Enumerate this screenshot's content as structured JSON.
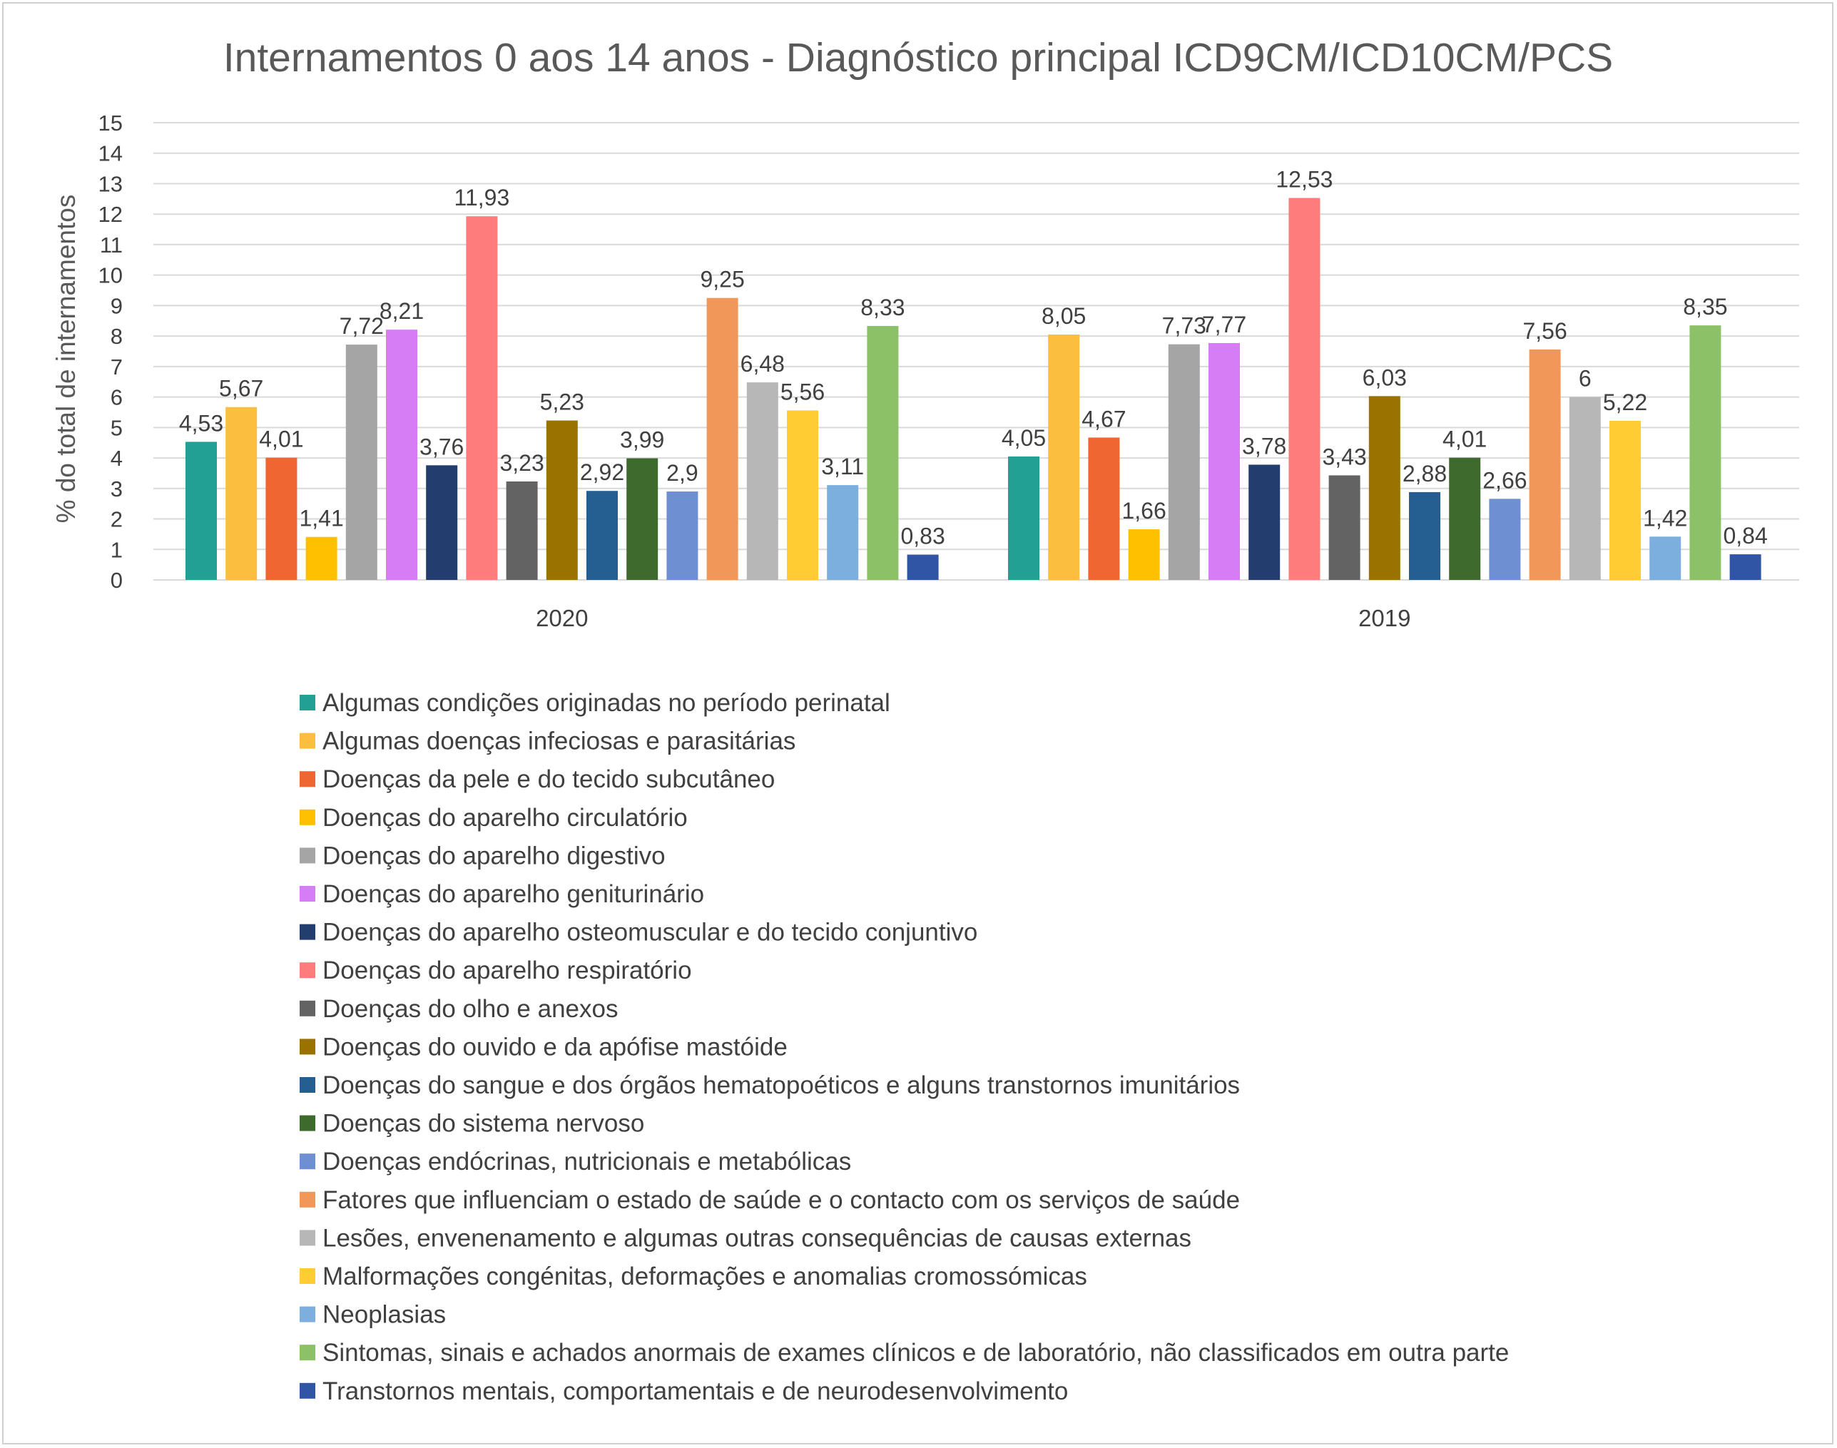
{
  "chart_data": {
    "type": "bar",
    "title": "Internamentos 0 aos 14 anos - Diagnóstico principal ICD9CM/ICD10CM/PCS",
    "xlabel": "",
    "ylabel": "% do total de internamentos",
    "ylim": [
      0,
      15
    ],
    "yticks": [
      "0",
      "1",
      "2",
      "3",
      "4",
      "5",
      "6",
      "7",
      "8",
      "9",
      "10",
      "11",
      "12",
      "13",
      "14",
      "15"
    ],
    "grid": true,
    "legend_position": "bottom",
    "categories": [
      "2020",
      "2019"
    ],
    "series": [
      {
        "name": "Algumas condições originadas no período perinatal",
        "color": "#21A093",
        "values": [
          4.53,
          4.05
        ],
        "labels": [
          "4,53",
          "4,05"
        ]
      },
      {
        "name": "Algumas doenças infeciosas e parasitárias",
        "color": "#FBBE3F",
        "values": [
          5.67,
          8.05
        ],
        "labels": [
          "5,67",
          "8,05"
        ]
      },
      {
        "name": "Doenças da pele e do tecido subcutâneo",
        "color": "#EF6632",
        "values": [
          4.01,
          4.67
        ],
        "labels": [
          "4,01",
          "4,67"
        ]
      },
      {
        "name": "Doenças do aparelho circulatório",
        "color": "#FFC000",
        "values": [
          1.41,
          1.66
        ],
        "labels": [
          "1,41",
          "1,66"
        ]
      },
      {
        "name": "Doenças do aparelho digestivo",
        "color": "#A5A5A5",
        "values": [
          7.72,
          7.73
        ],
        "labels": [
          "7,72",
          "7,73"
        ]
      },
      {
        "name": "Doenças do aparelho geniturinário",
        "color": "#D67CF5",
        "values": [
          8.21,
          7.77
        ],
        "labels": [
          "8,21",
          "7,77"
        ]
      },
      {
        "name": "Doenças do aparelho osteomuscular e do tecido conjuntivo",
        "color": "#233D6E",
        "values": [
          3.76,
          3.78
        ],
        "labels": [
          "3,76",
          "3,78"
        ]
      },
      {
        "name": "Doenças do aparelho respiratório",
        "color": "#FF7C7C",
        "values": [
          11.93,
          12.53
        ],
        "labels": [
          "11,93",
          "12,53"
        ]
      },
      {
        "name": "Doenças do olho e anexos",
        "color": "#636363",
        "values": [
          3.23,
          3.43
        ],
        "labels": [
          "3,23",
          "3,43"
        ]
      },
      {
        "name": "Doenças do ouvido e da apófise mastóide",
        "color": "#9A7200",
        "values": [
          5.23,
          6.03
        ],
        "labels": [
          "5,23",
          "6,03"
        ]
      },
      {
        "name": "Doenças do sangue e dos órgãos hematopoéticos e alguns transtornos imunitários",
        "color": "#255E91",
        "values": [
          2.92,
          2.88
        ],
        "labels": [
          "2,92",
          "2,88"
        ]
      },
      {
        "name": "Doenças do sistema nervoso",
        "color": "#3E6A2E",
        "values": [
          3.99,
          4.01
        ],
        "labels": [
          "3,99",
          "4,01"
        ]
      },
      {
        "name": "Doenças endócrinas, nutricionais e metabólicas",
        "color": "#6F8FD3",
        "values": [
          2.9,
          2.66
        ],
        "labels": [
          "2,9",
          "2,66"
        ]
      },
      {
        "name": "Fatores que influenciam o estado de saúde e o contacto com os serviços de saúde",
        "color": "#F1975A",
        "values": [
          9.25,
          7.56
        ],
        "labels": [
          "9,25",
          "7,56"
        ]
      },
      {
        "name": "Lesões, envenenamento e algumas outras consequências de causas externas",
        "color": "#B7B7B7",
        "values": [
          6.48,
          6
        ],
        "labels": [
          "6,48",
          "6"
        ]
      },
      {
        "name": "Malformações congénitas, deformações e anomalias cromossómicas",
        "color": "#FFCD33",
        "values": [
          5.56,
          5.22
        ],
        "labels": [
          "5,56",
          "5,22"
        ]
      },
      {
        "name": "Neoplasias",
        "color": "#7CAFDD",
        "values": [
          3.11,
          1.42
        ],
        "labels": [
          "3,11",
          "1,42"
        ]
      },
      {
        "name": "Sintomas, sinais e achados anormais de exames clínicos e de laboratório, não classificados em outra parte",
        "color": "#8CC168",
        "values": [
          8.33,
          8.35
        ],
        "labels": [
          "8,33",
          "8,35"
        ]
      },
      {
        "name": "Transtornos mentais, comportamentais e de neurodesenvolvimento",
        "color": "#2F55A4",
        "values": [
          0.83,
          0.84
        ],
        "labels": [
          "0,83",
          "0,84"
        ]
      }
    ]
  }
}
